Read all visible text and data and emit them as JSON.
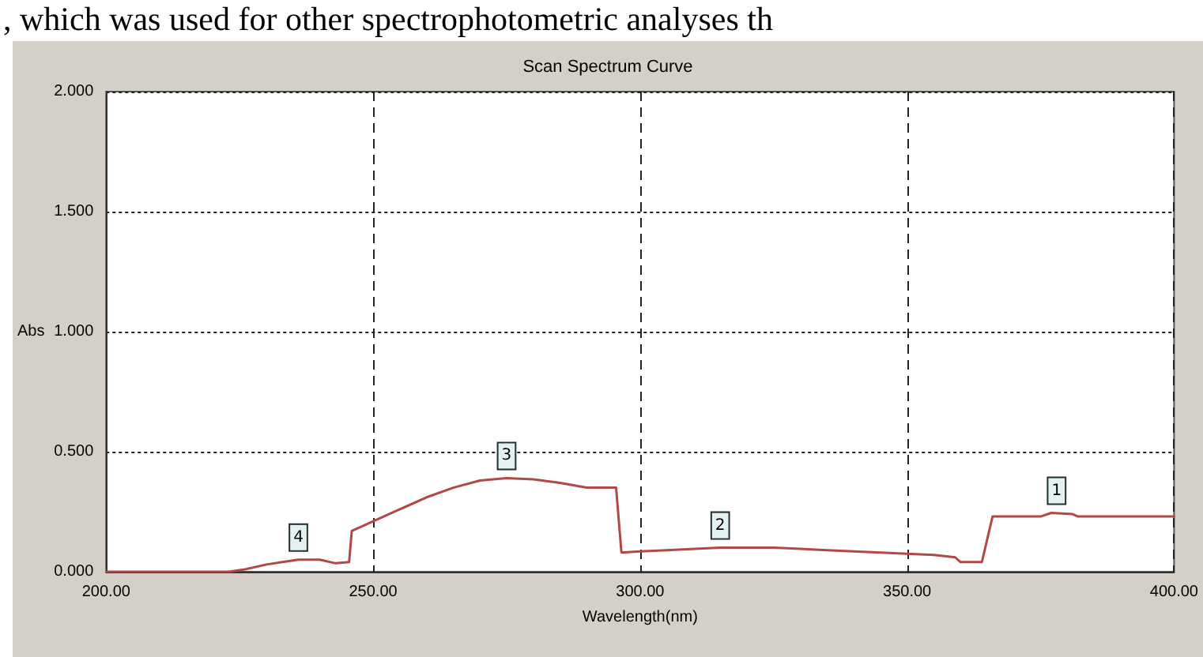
{
  "chart_data": {
    "type": "line",
    "title": "Scan Spectrum Curve",
    "xlabel": "Wavelength(nm)",
    "ylabel": "Abs",
    "annotations": [
      ", which was used for other spectrophotometric analyses th",
      {
        "text": "1",
        "x": 378,
        "y": 0.245
      },
      {
        "text": "2",
        "x": 315,
        "y": 0.1
      },
      {
        "text": "3",
        "x": 275,
        "y": 0.39
      },
      {
        "text": "4",
        "x": 236,
        "y": 0.05
      }
    ],
    "xlim": [
      200,
      400
    ],
    "ylim": [
      0,
      2
    ],
    "xticks": [
      {
        "value": 200,
        "label": "200.00"
      },
      {
        "value": 250,
        "label": "250.00"
      },
      {
        "value": 300,
        "label": "300.00"
      },
      {
        "value": 350,
        "label": "350.00"
      },
      {
        "value": 400,
        "label": "400.00"
      }
    ],
    "yticks": [
      {
        "value": 0,
        "label": "0.000"
      },
      {
        "value": 0.5,
        "label": "0.500"
      },
      {
        "value": 1,
        "label": "1.000"
      },
      {
        "value": 1.5,
        "label": "1.500"
      },
      {
        "value": 2,
        "label": "2.000"
      }
    ],
    "grid": true,
    "marker": "none",
    "line_style": "solid",
    "series": [
      {
        "color": "#b04848",
        "x": [
          200,
          223,
          226,
          230,
          233,
          236,
          240,
          243,
          245.5,
          246,
          250,
          255,
          260,
          265,
          270,
          275,
          280,
          285,
          290,
          295.5,
          296.5,
          300,
          305,
          315,
          325,
          335,
          345,
          350,
          355,
          359,
          360,
          363,
          364,
          366,
          375,
          377,
          381,
          382,
          400
        ],
        "values": [
          0,
          0,
          0.01,
          0.03,
          0.04,
          0.05,
          0.05,
          0.035,
          0.04,
          0.17,
          0.21,
          0.26,
          0.31,
          0.35,
          0.38,
          0.39,
          0.385,
          0.37,
          0.35,
          0.35,
          0.08,
          0.085,
          0.09,
          0.1,
          0.1,
          0.09,
          0.08,
          0.075,
          0.07,
          0.06,
          0.04,
          0.04,
          0.04,
          0.23,
          0.23,
          0.245,
          0.24,
          0.23,
          0.23
        ]
      }
    ]
  }
}
